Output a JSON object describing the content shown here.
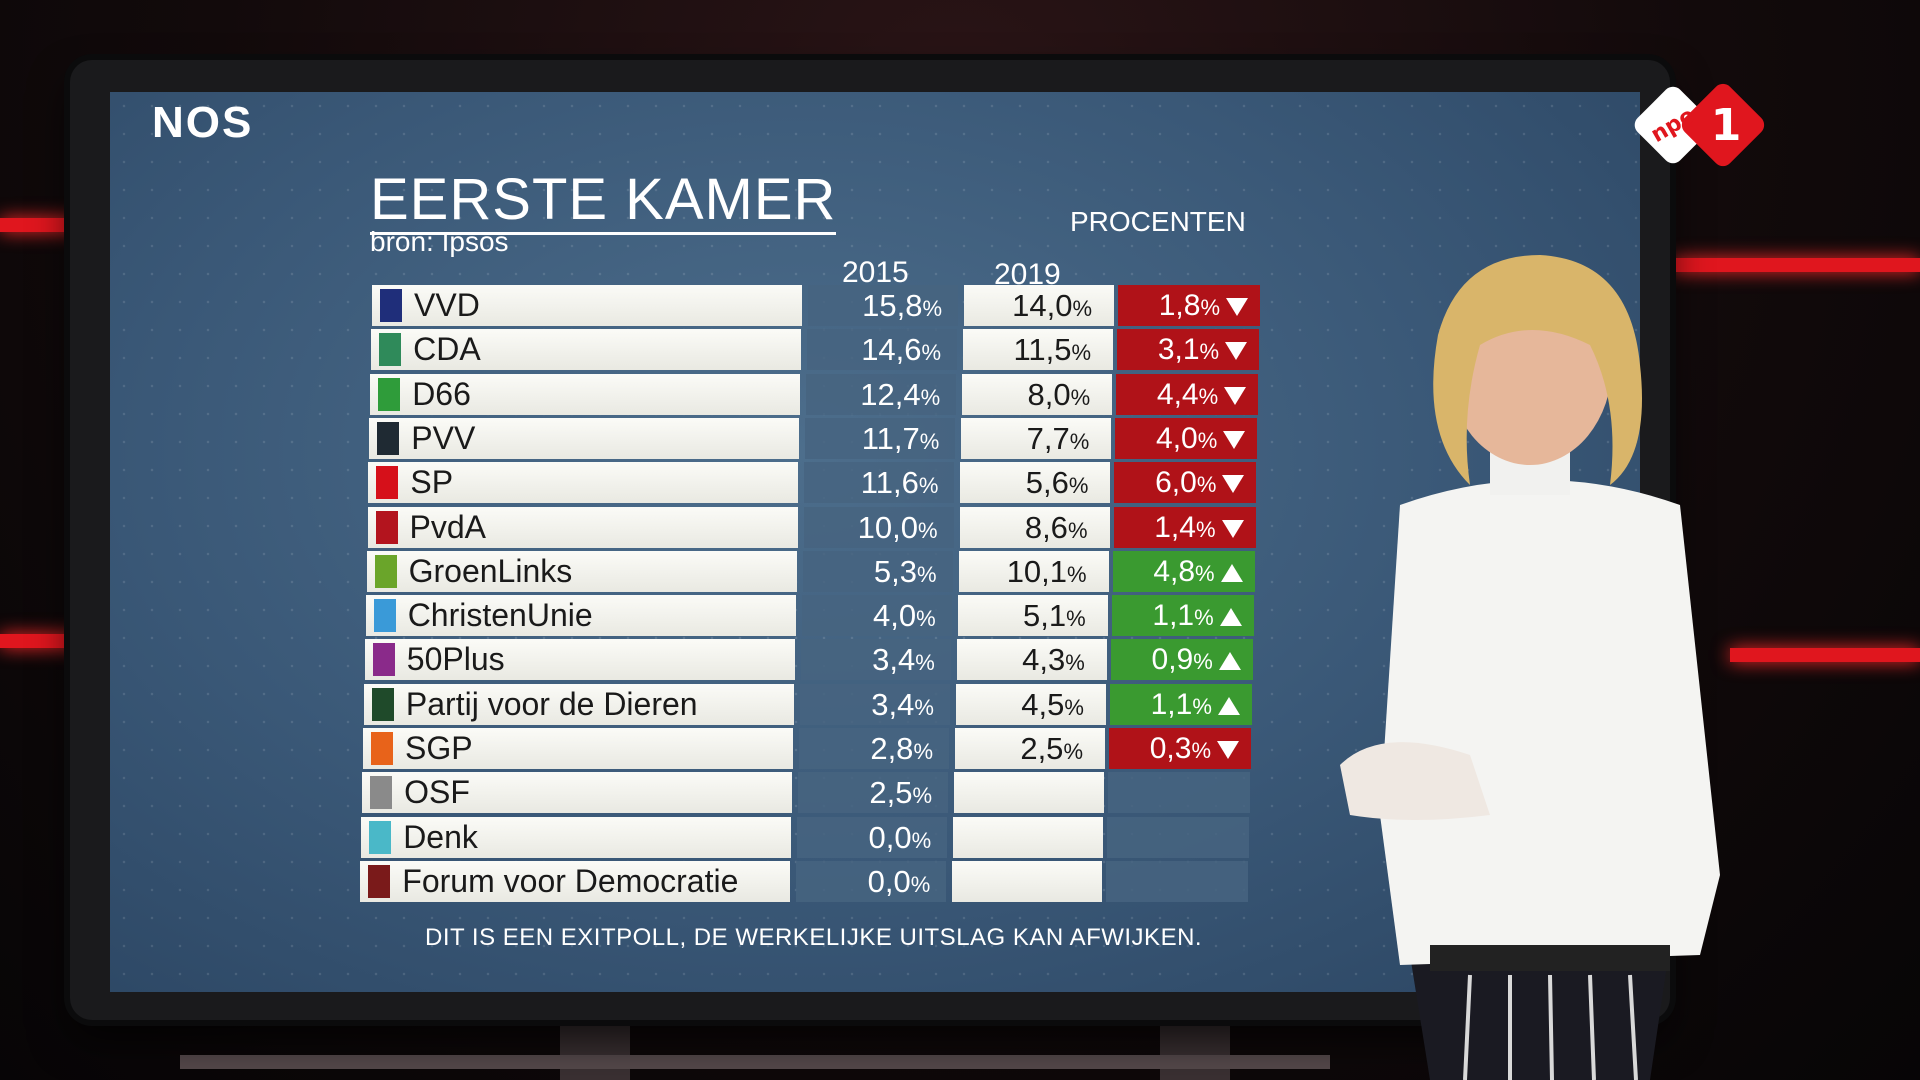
{
  "broadcaster_logo": "NOS",
  "channel_logo": {
    "text": "npo",
    "number": "1"
  },
  "graphic": {
    "title": "EERSTE KAMER",
    "source": "bron: Ipsos",
    "units": "PROCENTEN",
    "year_old": "2015",
    "year_new": "2019",
    "pct_sign": "%",
    "disclaimer": "DIT IS EEN EXITPOLL, DE WERKELIJKE UITSLAG KAN AFWIJKEN.",
    "rows": [
      {
        "party": "VVD",
        "color": "#1f2e7a",
        "v2015": "15,8",
        "v2019": "14,0",
        "diff": "1,8",
        "dir": "down"
      },
      {
        "party": "CDA",
        "color": "#2f8a5a",
        "v2015": "14,6",
        "v2019": "11,5",
        "diff": "3,1",
        "dir": "down"
      },
      {
        "party": "D66",
        "color": "#2f9c3a",
        "v2015": "12,4",
        "v2019": "8,0",
        "diff": "4,4",
        "dir": "down"
      },
      {
        "party": "PVV",
        "color": "#1f2a33",
        "v2015": "11,7",
        "v2019": "7,7",
        "diff": "4,0",
        "dir": "down"
      },
      {
        "party": "SP",
        "color": "#d6101a",
        "v2015": "11,6",
        "v2019": "5,6",
        "diff": "6,0",
        "dir": "down"
      },
      {
        "party": "PvdA",
        "color": "#b3141e",
        "v2015": "10,0",
        "v2019": "8,6",
        "diff": "1,4",
        "dir": "down"
      },
      {
        "party": "GroenLinks",
        "color": "#6aa52a",
        "v2015": "5,3",
        "v2019": "10,1",
        "diff": "4,8",
        "dir": "up"
      },
      {
        "party": "ChristenUnie",
        "color": "#3a9ad8",
        "v2015": "4,0",
        "v2019": "5,1",
        "diff": "1,1",
        "dir": "up"
      },
      {
        "party": "50Plus",
        "color": "#8a2a8a",
        "v2015": "3,4",
        "v2019": "4,3",
        "diff": "0,9",
        "dir": "up"
      },
      {
        "party": "Partij voor de Dieren",
        "color": "#1f4a2a",
        "v2015": "3,4",
        "v2019": "4,5",
        "diff": "1,1",
        "dir": "up"
      },
      {
        "party": "SGP",
        "color": "#e8631a",
        "v2015": "2,8",
        "v2019": "2,5",
        "diff": "0,3",
        "dir": "down"
      },
      {
        "party": "OSF",
        "color": "#8a8a8a",
        "v2015": "2,5",
        "v2019": "",
        "diff": "",
        "dir": ""
      },
      {
        "party": "Denk",
        "color": "#4ab8c8",
        "v2015": "0,0",
        "v2019": "",
        "diff": "",
        "dir": ""
      },
      {
        "party": "Forum voor Democratie",
        "color": "#7a1a1a",
        "v2015": "0,0",
        "v2019": "",
        "diff": "",
        "dir": ""
      }
    ]
  },
  "colors": {
    "down": "#b01218",
    "up": "#3a9a30",
    "accent_red": "#e0161e"
  }
}
